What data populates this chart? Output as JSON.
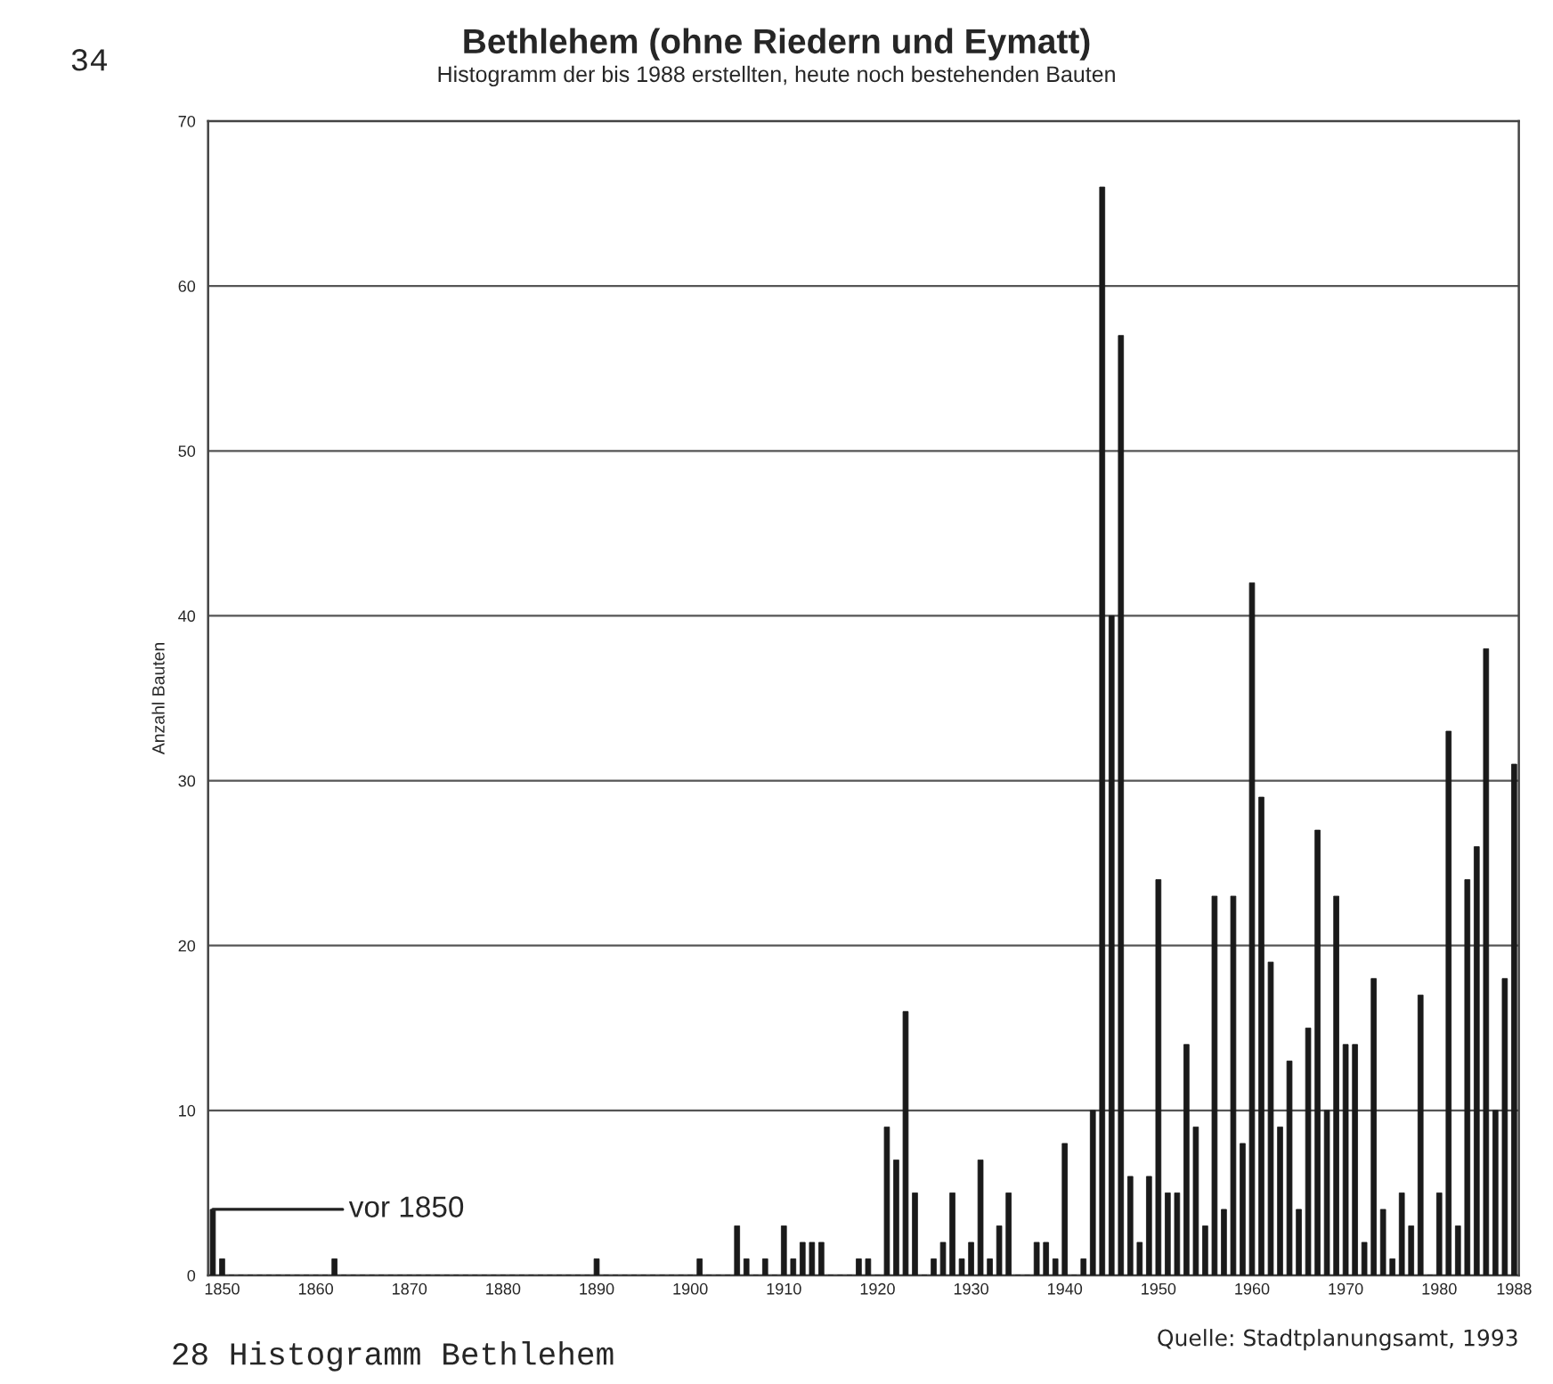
{
  "chart_data": {
    "type": "bar",
    "title": "Bethlehem (ohne Riedern und Eymatt)",
    "subtitle": "Histogramm der bis 1988 erstellten, heute noch bestehenden Bauten",
    "ylabel": "Anzahl Bauten",
    "x": [
      1849,
      1850,
      1851,
      1852,
      1853,
      1854,
      1855,
      1856,
      1857,
      1858,
      1859,
      1860,
      1861,
      1862,
      1863,
      1864,
      1865,
      1866,
      1867,
      1868,
      1869,
      1870,
      1871,
      1872,
      1873,
      1874,
      1875,
      1876,
      1877,
      1878,
      1879,
      1880,
      1881,
      1882,
      1883,
      1884,
      1885,
      1886,
      1887,
      1888,
      1889,
      1890,
      1891,
      1892,
      1893,
      1894,
      1895,
      1896,
      1897,
      1898,
      1899,
      1900,
      1901,
      1902,
      1903,
      1904,
      1905,
      1906,
      1907,
      1908,
      1909,
      1910,
      1911,
      1912,
      1913,
      1914,
      1915,
      1916,
      1917,
      1918,
      1919,
      1920,
      1921,
      1922,
      1923,
      1924,
      1925,
      1926,
      1927,
      1928,
      1929,
      1930,
      1931,
      1932,
      1933,
      1934,
      1935,
      1936,
      1937,
      1938,
      1939,
      1940,
      1941,
      1942,
      1943,
      1944,
      1945,
      1946,
      1947,
      1948,
      1949,
      1950,
      1951,
      1952,
      1953,
      1954,
      1955,
      1956,
      1957,
      1958,
      1959,
      1960,
      1961,
      1962,
      1963,
      1964,
      1965,
      1966,
      1967,
      1968,
      1969,
      1970,
      1971,
      1972,
      1973,
      1974,
      1975,
      1976,
      1977,
      1978,
      1979,
      1980,
      1981,
      1982,
      1983,
      1984,
      1985,
      1986,
      1987,
      1988
    ],
    "values": [
      4,
      1,
      0,
      0,
      0,
      0,
      0,
      0,
      0,
      0,
      0,
      0,
      0,
      1,
      0,
      0,
      0,
      0,
      0,
      0,
      0,
      0,
      0,
      0,
      0,
      0,
      0,
      0,
      0,
      0,
      0,
      0,
      0,
      0,
      0,
      0,
      0,
      0,
      0,
      0,
      0,
      1,
      0,
      0,
      0,
      0,
      0,
      0,
      0,
      0,
      0,
      0,
      1,
      0,
      0,
      0,
      3,
      1,
      0,
      1,
      0,
      3,
      1,
      2,
      2,
      2,
      0,
      0,
      0,
      1,
      1,
      0,
      9,
      7,
      16,
      5,
      0,
      1,
      2,
      5,
      1,
      2,
      7,
      1,
      3,
      5,
      0,
      0,
      2,
      2,
      1,
      8,
      0,
      1,
      10,
      66,
      40,
      57,
      6,
      2,
      6,
      24,
      5,
      5,
      14,
      9,
      3,
      23,
      4,
      23,
      8,
      42,
      29,
      19,
      9,
      13,
      4,
      15,
      27,
      10,
      23,
      14,
      14,
      2,
      18,
      4,
      1,
      5,
      3,
      17,
      0,
      5,
      33,
      3,
      24,
      26,
      38,
      10,
      18,
      31
    ],
    "color": "#1a1a1a",
    "xlim": [
      1848.5,
      1988.5
    ],
    "xticks": [
      1850,
      1860,
      1870,
      1880,
      1890,
      1900,
      1910,
      1920,
      1930,
      1940,
      1950,
      1960,
      1970,
      1980,
      1988
    ],
    "ylim": [
      0,
      70
    ],
    "yticks": [
      0,
      10,
      20,
      30,
      40,
      50,
      60,
      70
    ],
    "grid": "y",
    "annotations": [
      "vor 1850",
      "Quelle: Stadtplanungsamt, 1993",
      "34",
      "28 Histogramm Bethlehem"
    ]
  }
}
